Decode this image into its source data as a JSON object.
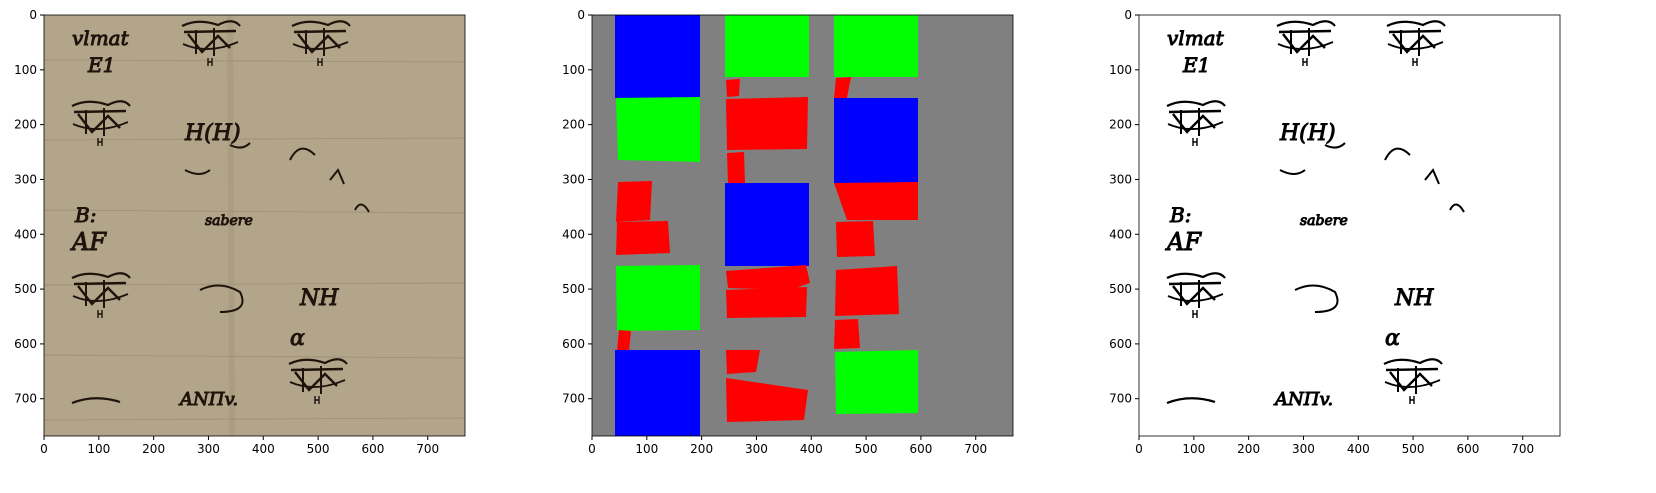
{
  "figure": {
    "panels": [
      {
        "name": "manuscript-scan"
      },
      {
        "name": "segmentation-mask"
      },
      {
        "name": "binarized-output"
      }
    ],
    "axes": {
      "ticks": [
        "0",
        "100",
        "200",
        "300",
        "400",
        "500",
        "600",
        "700"
      ]
    },
    "colors": {
      "parchment": "#b3a589",
      "ink": "#1e140c",
      "mask_background": "#808080",
      "mask_blue": "#0000ff",
      "mask_green": "#00ff00",
      "mask_red": "#ff0000",
      "binary_ink": "#000000"
    },
    "handwriting": [
      "vlmat",
      "E1",
      "H(H)",
      "B:",
      "AF",
      "NH",
      "α",
      "ANΠv.",
      "sabere"
    ]
  }
}
